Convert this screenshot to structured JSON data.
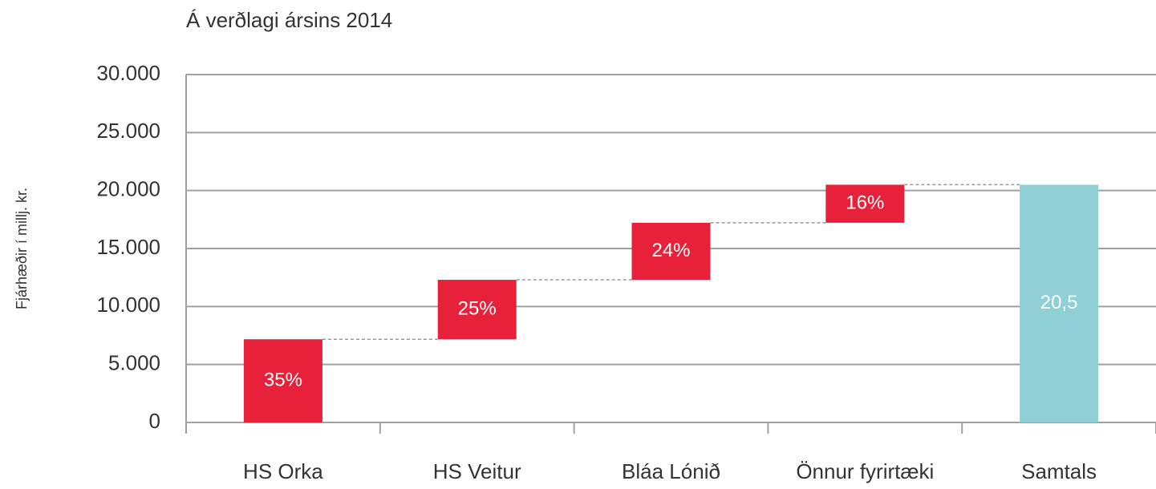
{
  "chart_data": {
    "type": "waterfall",
    "title": "Á verðlagi ársins 2014",
    "ylabel": "Fjárhæðir í millj. kr.",
    "categories": [
      "HS Orka",
      "HS Veitur",
      "Bláa Lónið",
      "Önnur fyrirtæki",
      "Samtals"
    ],
    "values": [
      7175,
      5125,
      4920,
      3280,
      20500
    ],
    "segment_labels": [
      "35%",
      "25%",
      "24%",
      "16%"
    ],
    "value_labels": [
      null,
      null,
      null,
      null,
      "20,5"
    ],
    "colors": {
      "segment": "#e8213b",
      "total": "#8fcfd6"
    },
    "ylim": [
      0,
      30000
    ],
    "yticks": [
      0,
      {
        "value": 5000,
        "label": "5.000"
      },
      {
        "value": 10000,
        "label": "10.000"
      },
      {
        "value": 15000,
        "label": "15.000"
      },
      {
        "value": 20000,
        "label": "20.000"
      },
      {
        "value": 25000,
        "label": "25.000"
      },
      {
        "value": 30000,
        "label": "30.000"
      }
    ],
    "grid": true
  }
}
